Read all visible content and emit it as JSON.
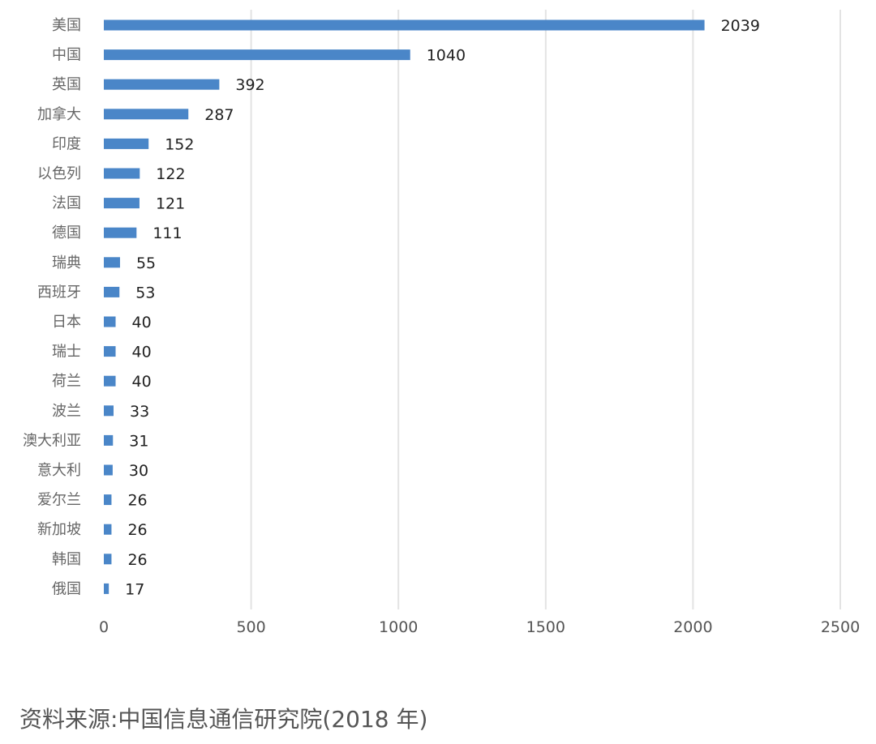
{
  "chart_data": {
    "type": "bar",
    "orientation": "horizontal",
    "categories": [
      "美国",
      "中国",
      "英国",
      "加拿大",
      "印度",
      "以色列",
      "法国",
      "德国",
      "瑞典",
      "西班牙",
      "日本",
      "瑞士",
      "荷兰",
      "波兰",
      "澳大利亚",
      "意大利",
      "爱尔兰",
      "新加坡",
      "韩国",
      "俄国"
    ],
    "values": [
      2039,
      1040,
      392,
      287,
      152,
      122,
      121,
      111,
      55,
      53,
      40,
      40,
      40,
      33,
      31,
      30,
      26,
      26,
      26,
      17
    ],
    "value_labels": [
      "2039",
      "1040",
      "392",
      "287",
      "152",
      "122",
      "121",
      "111",
      "55",
      "53",
      "40",
      "40",
      "40",
      "33",
      "31",
      "30",
      "26",
      "26",
      "26",
      "17"
    ],
    "xlim": [
      0,
      2500
    ],
    "xticks": [
      0,
      500,
      1000,
      1500,
      2000,
      2500
    ],
    "xtick_labels": [
      "0",
      "500",
      "1000",
      "1500",
      "2000",
      "2500"
    ],
    "grid": "vertical",
    "bar_color": "#4a86c8",
    "legend": false
  },
  "source_note": "资料来源:中国信息通信研究院(2018 年)"
}
